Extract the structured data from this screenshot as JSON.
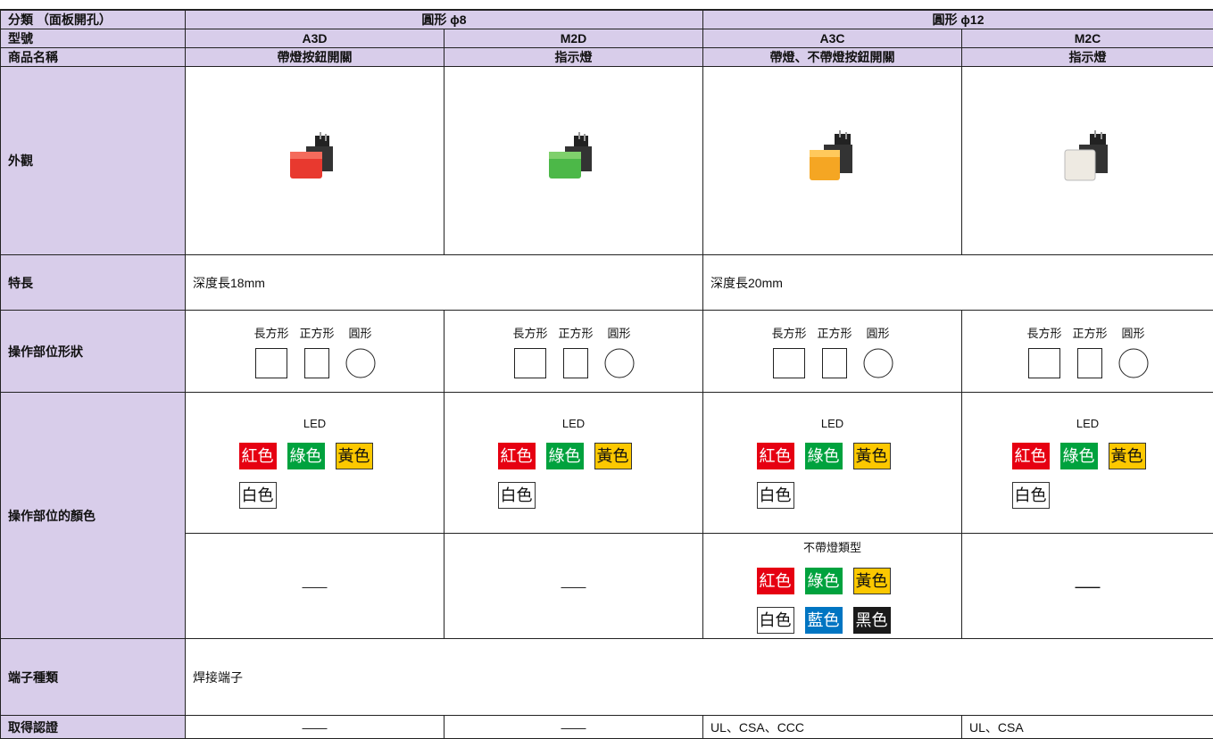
{
  "table": {
    "classification": {
      "label": "分類 （面板開孔）",
      "values": [
        "圓形 ϕ8",
        "圓形 ϕ12"
      ]
    },
    "model": {
      "label": "型號",
      "values": [
        "A3D",
        "M2D",
        "A3C",
        "M2C"
      ]
    },
    "product_name": {
      "label": "商品名稱",
      "values": [
        "帶燈按鈕開關",
        "指示燈",
        "帶燈、不帶燈按鈕開關",
        "指示燈"
      ]
    },
    "appearance": {
      "label": "外觀"
    },
    "features": {
      "label": "特長",
      "values": [
        "深度長18mm",
        "深度長20mm"
      ]
    },
    "shape": {
      "label": "操作部位形狀",
      "names": [
        "長方形",
        "正方形",
        "圓形"
      ]
    },
    "color": {
      "label": "操作部位的顏色",
      "led_title": "LED",
      "led_colors": [
        {
          "name": "紅色",
          "color": "#e60012"
        },
        {
          "name": "綠色",
          "color": "#00a23e"
        },
        {
          "name": "黃色",
          "color": "#fcc800"
        },
        {
          "name": "白色",
          "color": "#ffffff"
        }
      ],
      "unlit_title": "不帶燈類型",
      "unlit_colors": [
        {
          "name": "紅色",
          "color": "#e60012"
        },
        {
          "name": "綠色",
          "color": "#00a23e"
        },
        {
          "name": "黃色",
          "color": "#fcc800"
        },
        {
          "name": "白色",
          "color": "#ffffff"
        },
        {
          "name": "藍色",
          "color": "#0075c2"
        },
        {
          "name": "黑色",
          "color": "#1a1a1a"
        }
      ],
      "dash": "——"
    },
    "terminal": {
      "label": "端子種類",
      "value": "焊接端子"
    },
    "certification": {
      "label": "取得認證",
      "values": [
        "——",
        "——",
        "UL、CSA、CCC",
        "UL、CSA"
      ]
    }
  }
}
